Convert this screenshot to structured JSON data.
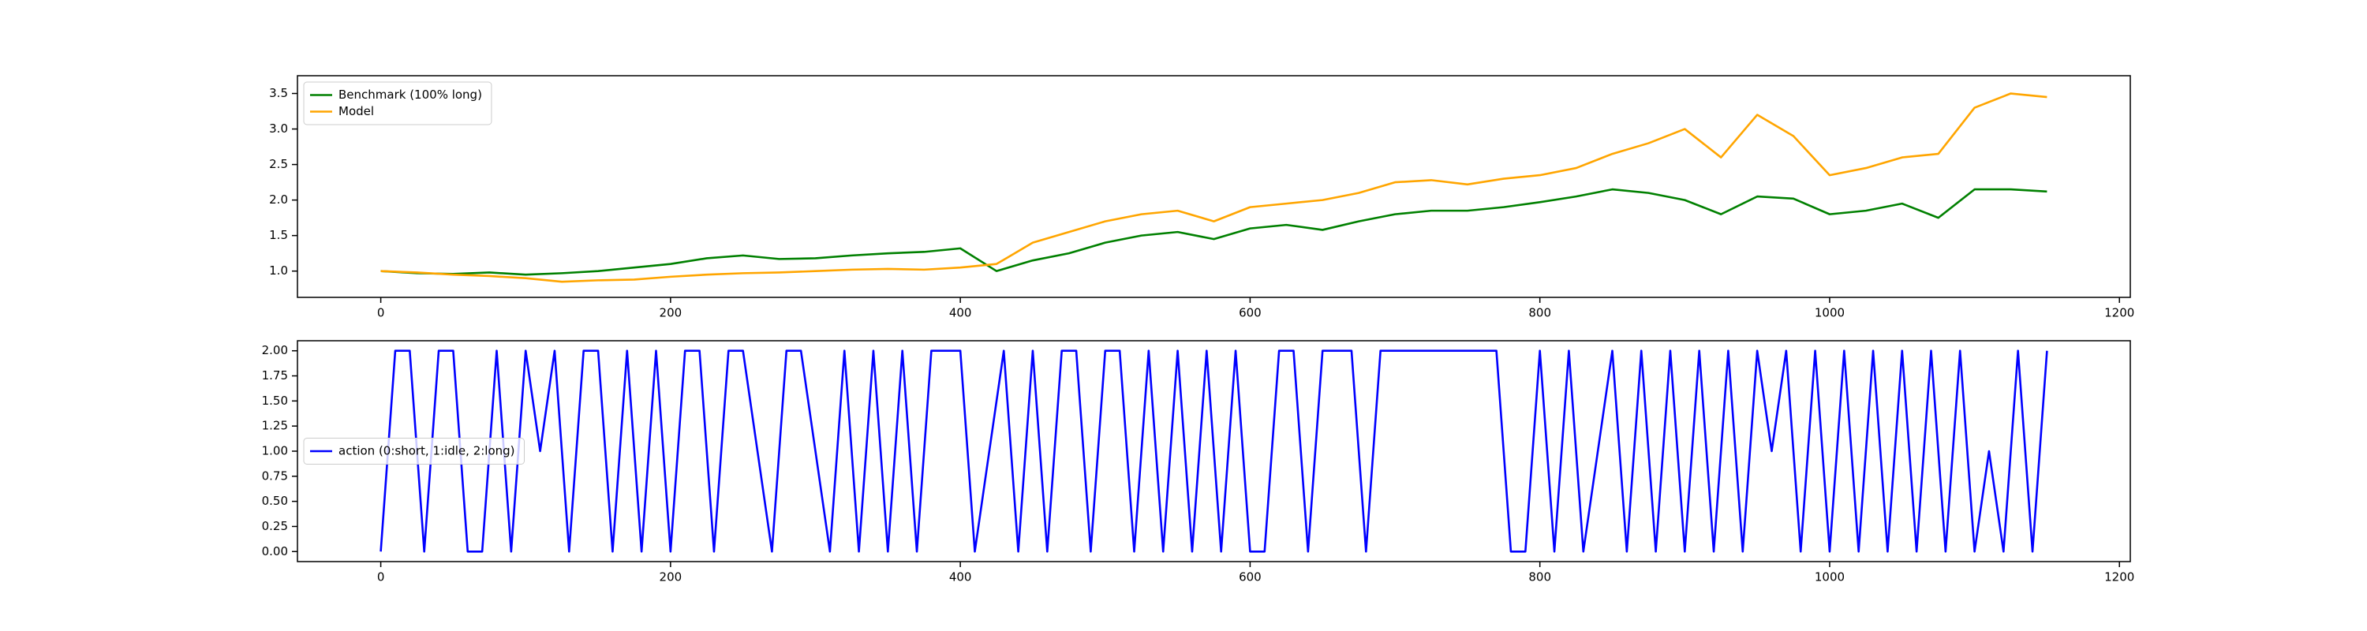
{
  "chart_data": [
    {
      "type": "line",
      "x": [
        0,
        25,
        50,
        75,
        100,
        125,
        150,
        175,
        200,
        225,
        250,
        275,
        300,
        325,
        350,
        375,
        400,
        425,
        450,
        475,
        500,
        525,
        550,
        575,
        600,
        625,
        650,
        675,
        700,
        725,
        750,
        775,
        800,
        825,
        850,
        875,
        900,
        925,
        950,
        975,
        1000,
        1025,
        1050,
        1075,
        1100,
        1125,
        1150
      ],
      "series": [
        {
          "name": "Benchmark (100% long)",
          "color": "#008000",
          "values": [
            1.0,
            0.97,
            0.96,
            0.98,
            0.95,
            0.97,
            1.0,
            1.05,
            1.1,
            1.18,
            1.22,
            1.17,
            1.18,
            1.22,
            1.25,
            1.27,
            1.32,
            1.0,
            1.15,
            1.25,
            1.4,
            1.5,
            1.55,
            1.45,
            1.6,
            1.65,
            1.58,
            1.7,
            1.8,
            1.85,
            1.85,
            1.9,
            1.97,
            2.05,
            2.15,
            2.1,
            2.0,
            1.8,
            2.05,
            2.02,
            1.8,
            1.85,
            1.95,
            1.75,
            2.15,
            2.15,
            2.12
          ]
        },
        {
          "name": "Model",
          "color": "#ffa500",
          "values": [
            1.0,
            0.98,
            0.95,
            0.93,
            0.9,
            0.85,
            0.87,
            0.88,
            0.92,
            0.95,
            0.97,
            0.98,
            1.0,
            1.02,
            1.03,
            1.02,
            1.05,
            1.1,
            1.4,
            1.55,
            1.7,
            1.8,
            1.85,
            1.7,
            1.9,
            1.95,
            2.0,
            2.1,
            2.25,
            2.28,
            2.22,
            2.3,
            2.35,
            2.45,
            2.65,
            2.8,
            3.0,
            2.6,
            3.2,
            2.9,
            2.35,
            2.45,
            2.6,
            2.65,
            3.3,
            3.5,
            3.45
          ]
        }
      ],
      "xlim": [
        -57.5,
        1207.5
      ],
      "ylim": [
        0.63,
        3.75
      ],
      "xticks": [
        0,
        200,
        400,
        600,
        800,
        1000,
        1200
      ],
      "yticks": [
        {
          "value": 1.0,
          "label": "1.0"
        },
        {
          "value": 1.5,
          "label": "1.5"
        },
        {
          "value": 2.0,
          "label": "2.0"
        },
        {
          "value": 2.5,
          "label": "2.5"
        },
        {
          "value": 3.0,
          "label": "3.0"
        },
        {
          "value": 3.5,
          "label": "3.5"
        }
      ],
      "legend": "upper left"
    },
    {
      "type": "line",
      "x": [
        0,
        10,
        20,
        30,
        40,
        50,
        60,
        70,
        80,
        90,
        100,
        110,
        120,
        130,
        140,
        150,
        160,
        170,
        180,
        190,
        200,
        210,
        220,
        230,
        240,
        250,
        260,
        270,
        280,
        290,
        300,
        310,
        320,
        330,
        340,
        350,
        360,
        370,
        380,
        390,
        400,
        410,
        420,
        430,
        440,
        450,
        460,
        470,
        480,
        490,
        500,
        510,
        520,
        530,
        540,
        550,
        560,
        570,
        580,
        590,
        600,
        610,
        620,
        630,
        640,
        650,
        660,
        670,
        680,
        690,
        700,
        710,
        720,
        730,
        740,
        750,
        760,
        770,
        780,
        790,
        800,
        810,
        820,
        830,
        840,
        850,
        860,
        870,
        880,
        890,
        900,
        910,
        920,
        930,
        940,
        950,
        960,
        970,
        980,
        990,
        1000,
        1010,
        1020,
        1030,
        1040,
        1050,
        1060,
        1070,
        1080,
        1090,
        1100,
        1110,
        1120,
        1130,
        1140,
        1150
      ],
      "series": [
        {
          "name": "action (0:short, 1:idle, 2:long)",
          "color": "#0000ff",
          "values": [
            0,
            2,
            2,
            0,
            2,
            2,
            0,
            0,
            2,
            0,
            2,
            1,
            2,
            0,
            2,
            2,
            0,
            2,
            0,
            2,
            0,
            2,
            2,
            0,
            2,
            2,
            1,
            0,
            2,
            2,
            1,
            0,
            2,
            0,
            2,
            0,
            2,
            0,
            2,
            2,
            2,
            0,
            1,
            2,
            0,
            2,
            0,
            2,
            2,
            0,
            2,
            2,
            0,
            2,
            0,
            2,
            0,
            2,
            0,
            2,
            0,
            0,
            2,
            2,
            0,
            2,
            2,
            2,
            0,
            2,
            2,
            2,
            2,
            2,
            2,
            2,
            2,
            2,
            0,
            0,
            2,
            0,
            2,
            0,
            1,
            2,
            0,
            2,
            0,
            2,
            0,
            2,
            0,
            2,
            0,
            2,
            1,
            2,
            0,
            2,
            0,
            2,
            0,
            2,
            0,
            2,
            0,
            2,
            0,
            2,
            0,
            1,
            0,
            2,
            0,
            2
          ]
        }
      ],
      "xlim": [
        -57.5,
        1207.5
      ],
      "ylim": [
        -0.1,
        2.1
      ],
      "xticks": [
        0,
        200,
        400,
        600,
        800,
        1000,
        1200
      ],
      "yticks": [
        {
          "value": 0,
          "label": "0.00"
        },
        {
          "value": 0.25,
          "label": "0.25"
        },
        {
          "value": 0.5,
          "label": "0.50"
        },
        {
          "value": 0.75,
          "label": "0.75"
        },
        {
          "value": 1,
          "label": "1.00"
        },
        {
          "value": 1.25,
          "label": "1.25"
        },
        {
          "value": 1.5,
          "label": "1.50"
        },
        {
          "value": 1.75,
          "label": "1.75"
        },
        {
          "value": 2,
          "label": "2.00"
        }
      ],
      "legend": "center left"
    }
  ]
}
